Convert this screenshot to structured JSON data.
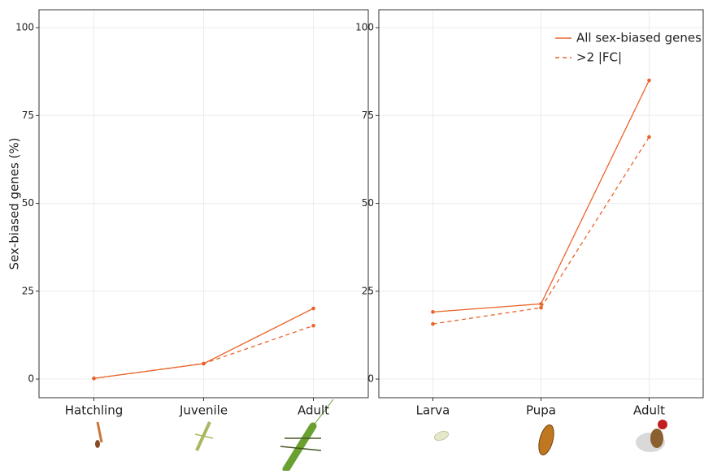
{
  "chart_data": [
    {
      "type": "line",
      "y_label": "Sex-biased genes (%)",
      "categories": [
        "Hatchling",
        "Juvenile",
        "Adult"
      ],
      "series": [
        {
          "color": "#e8642a",
          "dash": "solid",
          "values": [
            0.2,
            4.4,
            20.1
          ]
        },
        {
          "color": "#e8642a",
          "dash": "dashed",
          "values": [
            0.2,
            4.4,
            15.2
          ]
        }
      ],
      "ylim": [
        -5.3,
        105.1
      ],
      "yticks": [
        0,
        25,
        50,
        75,
        100
      ],
      "grid": true
    },
    {
      "type": "line",
      "categories": [
        "Larva",
        "Pupa",
        "Adult"
      ],
      "series": [
        {
          "name": "All sex-biased genes",
          "color": "#e8642a",
          "dash": "solid",
          "values": [
            19.1,
            21.4,
            85.0
          ]
        },
        {
          "name": ">2 |FC|",
          "color": "#e8642a",
          "dash": "dashed",
          "values": [
            15.7,
            20.3,
            68.9
          ]
        }
      ],
      "ylim": [
        -5.3,
        105.1
      ],
      "yticks": [
        0,
        25,
        50,
        75,
        100
      ],
      "grid": true,
      "legend": "top-right"
    }
  ]
}
